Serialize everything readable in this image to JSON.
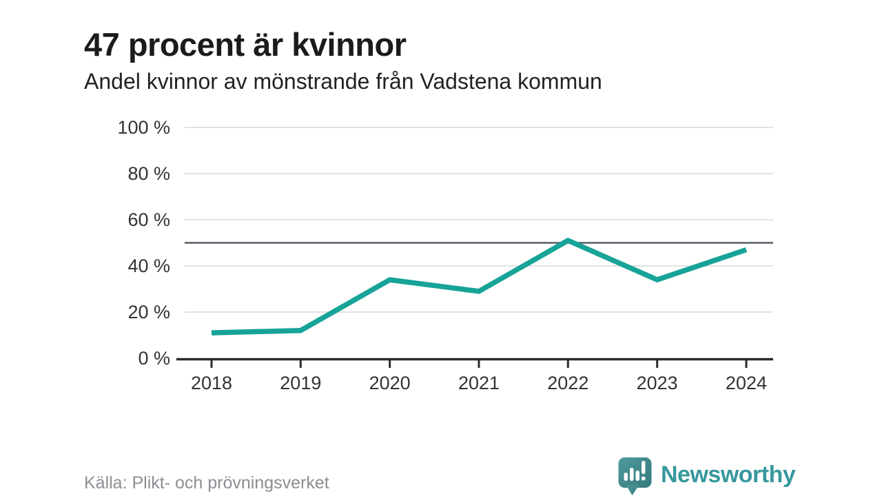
{
  "header": {
    "title": "47 procent är kvinnor",
    "subtitle": "Andel kvinnor av mönstrande från Vadstena kommun"
  },
  "chart_data": {
    "type": "line",
    "title": "47 procent är kvinnor",
    "subtitle": "Andel kvinnor av mönstrande från Vadstena kommun",
    "x": [
      "2018",
      "2019",
      "2020",
      "2021",
      "2022",
      "2023",
      "2024"
    ],
    "series": [
      {
        "name": "Andel kvinnor av mönstrande",
        "values": [
          11,
          12,
          34,
          29,
          51,
          34,
          47
        ]
      }
    ],
    "unit": "%",
    "ylim": [
      0,
      100
    ],
    "yticks": [
      0,
      20,
      40,
      60,
      80,
      100
    ],
    "ytick_suffix": " %",
    "reference_line": 50,
    "grid": true,
    "legend": "none",
    "colors": {
      "line": "#17a398",
      "reference_line": "#575c66",
      "axis": "#2b2b2b",
      "grid": "#d9d9d9",
      "tick_label": "#333333"
    }
  },
  "footer": {
    "source": "Källa: Plikt- och prövningsverket",
    "brand": "Newsworthy",
    "brand_color": "#37989d"
  },
  "icons": {
    "logo": "newsworthy-speech-bubble-chart-icon"
  }
}
